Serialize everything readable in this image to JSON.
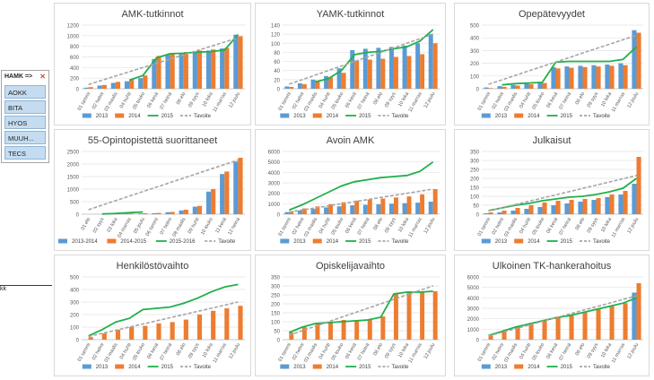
{
  "slicer": {
    "title": "HAMK =>",
    "clear_icon": "filter-clear-icon",
    "items": [
      "AOKK",
      "BITA",
      "HYOS",
      "MUUH...",
      "TECS"
    ]
  },
  "side_label": "kk",
  "colors": {
    "blue": "#5b9bd5",
    "orange": "#ed7d31",
    "green": "#20b04a",
    "gray": "#a6a6a6"
  },
  "chart_data": [
    {
      "type": "bar",
      "title": "AMK-tutkinnot",
      "categories": [
        "01 tammi",
        "02 helmi",
        "03 maalis",
        "04 huhti",
        "05 touko",
        "06 kesä",
        "07 heinä",
        "08 elo",
        "09 syys",
        "10 loka",
        "11 marras",
        "12 joulu"
      ],
      "ylim": [
        0,
        1200
      ],
      "yticks": [
        0,
        200,
        400,
        600,
        800,
        1000,
        1200
      ],
      "series": [
        {
          "name": "2013",
          "kind": "bar",
          "color": "#5b9bd5",
          "values": [
            20,
            60,
            110,
            140,
            200,
            560,
            640,
            660,
            690,
            720,
            760,
            1020
          ]
        },
        {
          "name": "2014",
          "kind": "bar",
          "color": "#ed7d31",
          "values": [
            30,
            70,
            130,
            170,
            250,
            620,
            660,
            690,
            720,
            740,
            770,
            990
          ]
        },
        {
          "name": "2015",
          "kind": "line",
          "color": "#20b04a",
          "values": [
            null,
            null,
            null,
            160,
            250,
            580,
            660,
            670,
            690,
            700,
            730,
            1020
          ]
        },
        {
          "name": "Tavoite",
          "kind": "dash",
          "color": "#a6a6a6",
          "values": [
            80,
            160,
            240,
            320,
            400,
            480,
            560,
            640,
            720,
            800,
            880,
            960
          ]
        }
      ]
    },
    {
      "type": "bar",
      "title": "YAMK-tutkinnot",
      "categories": [
        "01 tammi",
        "02 helmi",
        "03 maalis",
        "04 huhti",
        "05 touko",
        "06 kesä",
        "07 heinä",
        "08 elo",
        "09 syys",
        "10 loka",
        "11 marras",
        "12 joulu"
      ],
      "ylim": [
        0,
        140
      ],
      "yticks": [
        0,
        20,
        40,
        60,
        80,
        100,
        120,
        140
      ],
      "series": [
        {
          "name": "2013",
          "kind": "bar",
          "color": "#5b9bd5",
          "values": [
            5,
            12,
            20,
            28,
            45,
            85,
            88,
            90,
            92,
            95,
            100,
            120
          ]
        },
        {
          "name": "2014",
          "kind": "bar",
          "color": "#ed7d31",
          "values": [
            4,
            10,
            18,
            25,
            35,
            62,
            64,
            66,
            70,
            72,
            76,
            100
          ]
        },
        {
          "name": "2015",
          "kind": "line",
          "color": "#20b04a",
          "values": [
            null,
            null,
            15,
            22,
            40,
            75,
            80,
            82,
            88,
            92,
            105,
            130
          ]
        },
        {
          "name": "Tavoite",
          "kind": "dash",
          "color": "#a6a6a6",
          "values": [
            10,
            20,
            30,
            40,
            50,
            60,
            70,
            80,
            90,
            100,
            110,
            120
          ]
        }
      ]
    },
    {
      "type": "bar",
      "title": "Opepätevyydet",
      "categories": [
        "01 tammi",
        "02 helmi",
        "03 maalis",
        "04 huhti",
        "05 touko",
        "06 kesä",
        "07 heinä",
        "08 elo",
        "09 syys",
        "10 loka",
        "11 marras",
        "12 joulu"
      ],
      "ylim": [
        0,
        500
      ],
      "yticks": [
        0,
        100,
        200,
        300,
        400,
        500
      ],
      "series": [
        {
          "name": "2013",
          "kind": "bar",
          "color": "#5b9bd5",
          "values": [
            10,
            20,
            30,
            40,
            50,
            170,
            175,
            180,
            185,
            190,
            200,
            460
          ]
        },
        {
          "name": "2014",
          "kind": "bar",
          "color": "#ed7d31",
          "values": [
            5,
            15,
            25,
            35,
            45,
            160,
            165,
            170,
            175,
            180,
            185,
            440
          ]
        },
        {
          "name": "2015",
          "kind": "line",
          "color": "#20b04a",
          "values": [
            null,
            30,
            40,
            45,
            50,
            210,
            215,
            215,
            215,
            215,
            230,
            330
          ]
        },
        {
          "name": "Tavoite",
          "kind": "dash",
          "color": "#a6a6a6",
          "values": [
            35,
            70,
            105,
            140,
            175,
            210,
            245,
            280,
            315,
            350,
            385,
            420
          ]
        }
      ]
    },
    {
      "type": "bar",
      "title": "55-Opintopistettä suorittaneet",
      "categories": [
        "01 elo",
        "02 syys",
        "03 loka",
        "04 marras",
        "05 joulu",
        "06 tammi",
        "07 helmi",
        "08 maalis",
        "09 huhti",
        "10 touko",
        "11 kesä",
        "12 heinä"
      ],
      "ylim": [
        0,
        2500
      ],
      "yticks": [
        0,
        500,
        1000,
        1500,
        2000,
        2500
      ],
      "series": [
        {
          "name": "2013-2014",
          "kind": "bar",
          "color": "#5b9bd5",
          "values": [
            0,
            0,
            10,
            20,
            30,
            40,
            80,
            150,
            300,
            900,
            1600,
            2100
          ]
        },
        {
          "name": "2014-2015",
          "kind": "bar",
          "color": "#ed7d31",
          "values": [
            0,
            0,
            15,
            25,
            35,
            50,
            90,
            180,
            330,
            1000,
            1700,
            2250
          ]
        },
        {
          "name": "2015-2016",
          "kind": "line",
          "color": "#20b04a",
          "values": [
            null,
            10,
            30,
            60,
            90,
            null,
            null,
            null,
            null,
            null,
            null,
            null
          ]
        },
        {
          "name": "Tavoite",
          "kind": "dash",
          "color": "#a6a6a6",
          "values": [
            180,
            360,
            540,
            720,
            900,
            1080,
            1260,
            1440,
            1620,
            1800,
            1980,
            2160
          ]
        }
      ]
    },
    {
      "type": "bar",
      "title": "Avoin AMK",
      "categories": [
        "01 tammi",
        "02 helmi",
        "03 maalis",
        "04 huhti",
        "05 touko",
        "06 kesä",
        "07 heinä",
        "08 elo",
        "09 syys",
        "10 loka",
        "11 marras",
        "12 joulu"
      ],
      "ylim": [
        0,
        6000
      ],
      "yticks": [
        0,
        1000,
        2000,
        3000,
        4000,
        5000,
        6000
      ],
      "series": [
        {
          "name": "2013",
          "kind": "bar",
          "color": "#5b9bd5",
          "values": [
            200,
            350,
            500,
            650,
            750,
            850,
            900,
            950,
            1000,
            1050,
            1100,
            1200
          ]
        },
        {
          "name": "2014",
          "kind": "bar",
          "color": "#ed7d31",
          "values": [
            300,
            550,
            750,
            950,
            1150,
            1300,
            1400,
            1500,
            1600,
            1700,
            1900,
            2400
          ]
        },
        {
          "name": "2015",
          "kind": "line",
          "color": "#20b04a",
          "values": [
            400,
            900,
            1500,
            2100,
            2700,
            3100,
            3300,
            3500,
            3600,
            3700,
            4100,
            5000
          ]
        },
        {
          "name": "Tavoite",
          "kind": "dash",
          "color": "#a6a6a6",
          "values": [
            200,
            400,
            600,
            800,
            1000,
            1200,
            1400,
            1600,
            1800,
            2000,
            2200,
            2400
          ]
        }
      ]
    },
    {
      "type": "bar",
      "title": "Julkaisut",
      "categories": [
        "01 tammi",
        "02 helmi",
        "03 maalis",
        "04 huhti",
        "05 touko",
        "06 kesä",
        "07 heinä",
        "08 elo",
        "09 syys",
        "10 loka",
        "11 marras",
        "12 joulu"
      ],
      "ylim": [
        0,
        350
      ],
      "yticks": [
        0,
        50,
        100,
        150,
        200,
        250,
        300,
        350
      ],
      "series": [
        {
          "name": "2013",
          "kind": "bar",
          "color": "#5b9bd5",
          "values": [
            5,
            10,
            20,
            30,
            40,
            50,
            60,
            70,
            80,
            95,
            110,
            170
          ]
        },
        {
          "name": "2014",
          "kind": "bar",
          "color": "#ed7d31",
          "values": [
            10,
            20,
            35,
            50,
            65,
            75,
            80,
            85,
            90,
            110,
            130,
            320
          ]
        },
        {
          "name": "2015",
          "kind": "line",
          "color": "#20b04a",
          "values": [
            20,
            35,
            50,
            60,
            75,
            85,
            95,
            100,
            110,
            125,
            145,
            200
          ]
        },
        {
          "name": "Tavoite",
          "kind": "dash",
          "color": "#a6a6a6",
          "values": [
            18,
            36,
            54,
            72,
            90,
            108,
            126,
            144,
            162,
            180,
            198,
            216
          ]
        }
      ]
    },
    {
      "type": "bar",
      "title": "Henkilöstövaihto",
      "categories": [
        "01 tammi",
        "02 helmi",
        "03 maalis",
        "04 huhti",
        "05 touko",
        "06 kesä",
        "07 heinä",
        "08 elo",
        "09 syys",
        "10 loka",
        "11 marras",
        "12 joulu"
      ],
      "ylim": [
        0,
        500
      ],
      "yticks": [
        0,
        100,
        200,
        300,
        400,
        500
      ],
      "series": [
        {
          "name": "2013",
          "kind": "bar",
          "color": "#5b9bd5",
          "values": [
            0,
            0,
            0,
            0,
            0,
            0,
            0,
            0,
            0,
            0,
            0,
            0
          ]
        },
        {
          "name": "2014",
          "kind": "bar",
          "color": "#ed7d31",
          "values": [
            20,
            50,
            80,
            100,
            110,
            130,
            140,
            160,
            200,
            230,
            250,
            270
          ]
        },
        {
          "name": "2015",
          "kind": "line",
          "color": "#20b04a",
          "values": [
            30,
            80,
            140,
            170,
            240,
            250,
            260,
            290,
            330,
            380,
            420,
            440
          ]
        },
        {
          "name": "Tavoite",
          "kind": "dash",
          "color": "#a6a6a6",
          "values": [
            25,
            50,
            75,
            100,
            125,
            150,
            175,
            200,
            225,
            250,
            275,
            300
          ]
        }
      ]
    },
    {
      "type": "bar",
      "title": "Opiskelijavaihto",
      "categories": [
        "01 tammi",
        "02 helmi",
        "03 maalis",
        "04 huhti",
        "05 touko",
        "06 kesä",
        "07 heinä",
        "08 elo",
        "09 syys",
        "10 loka",
        "11 marras",
        "12 joulu"
      ],
      "ylim": [
        0,
        350
      ],
      "yticks": [
        0,
        50,
        100,
        150,
        200,
        250,
        300,
        350
      ],
      "series": [
        {
          "name": "2013",
          "kind": "bar",
          "color": "#5b9bd5",
          "values": [
            0,
            0,
            0,
            0,
            0,
            0,
            0,
            0,
            0,
            0,
            0,
            0
          ]
        },
        {
          "name": "2014",
          "kind": "bar",
          "color": "#ed7d31",
          "values": [
            40,
            70,
            90,
            100,
            110,
            110,
            115,
            130,
            260,
            270,
            270,
            270
          ]
        },
        {
          "name": "2015",
          "kind": "line",
          "color": "#20b04a",
          "values": [
            40,
            70,
            90,
            95,
            100,
            105,
            110,
            125,
            255,
            265,
            265,
            270
          ]
        },
        {
          "name": "Tavoite",
          "kind": "dash",
          "color": "#a6a6a6",
          "values": [
            25,
            50,
            75,
            100,
            125,
            150,
            175,
            200,
            225,
            250,
            275,
            300
          ]
        }
      ]
    },
    {
      "type": "bar",
      "title": "Ulkoinen TK-hankerahoitus",
      "categories": [
        "01 tammi",
        "02 helmi",
        "03 maalis",
        "04 huhti",
        "05 touko",
        "06 kesä",
        "07 heinä",
        "08 elo",
        "09 syys",
        "10 loka",
        "11 marras",
        "12 joulu"
      ],
      "ylim": [
        0,
        6000
      ],
      "yticks": [
        0,
        1000,
        2000,
        3000,
        4000,
        5000,
        6000
      ],
      "series": [
        {
          "name": "2013",
          "kind": "bar",
          "color": "#5b9bd5",
          "values": [
            0,
            0,
            0,
            0,
            0,
            0,
            0,
            0,
            0,
            0,
            0,
            4500
          ]
        },
        {
          "name": "2014",
          "kind": "bar",
          "color": "#ed7d31",
          "values": [
            400,
            900,
            1300,
            1600,
            1900,
            2200,
            2400,
            2600,
            2900,
            3200,
            3500,
            5400
          ]
        },
        {
          "name": "2015",
          "kind": "line",
          "color": "#20b04a",
          "values": [
            400,
            800,
            1200,
            1500,
            1800,
            2100,
            2300,
            2600,
            2900,
            3200,
            3500,
            4000
          ]
        },
        {
          "name": "Tavoite",
          "kind": "dash",
          "color": "#a6a6a6",
          "values": [
            350,
            700,
            1050,
            1400,
            1750,
            2100,
            2450,
            2800,
            3150,
            3500,
            3850,
            4200
          ]
        }
      ]
    }
  ]
}
